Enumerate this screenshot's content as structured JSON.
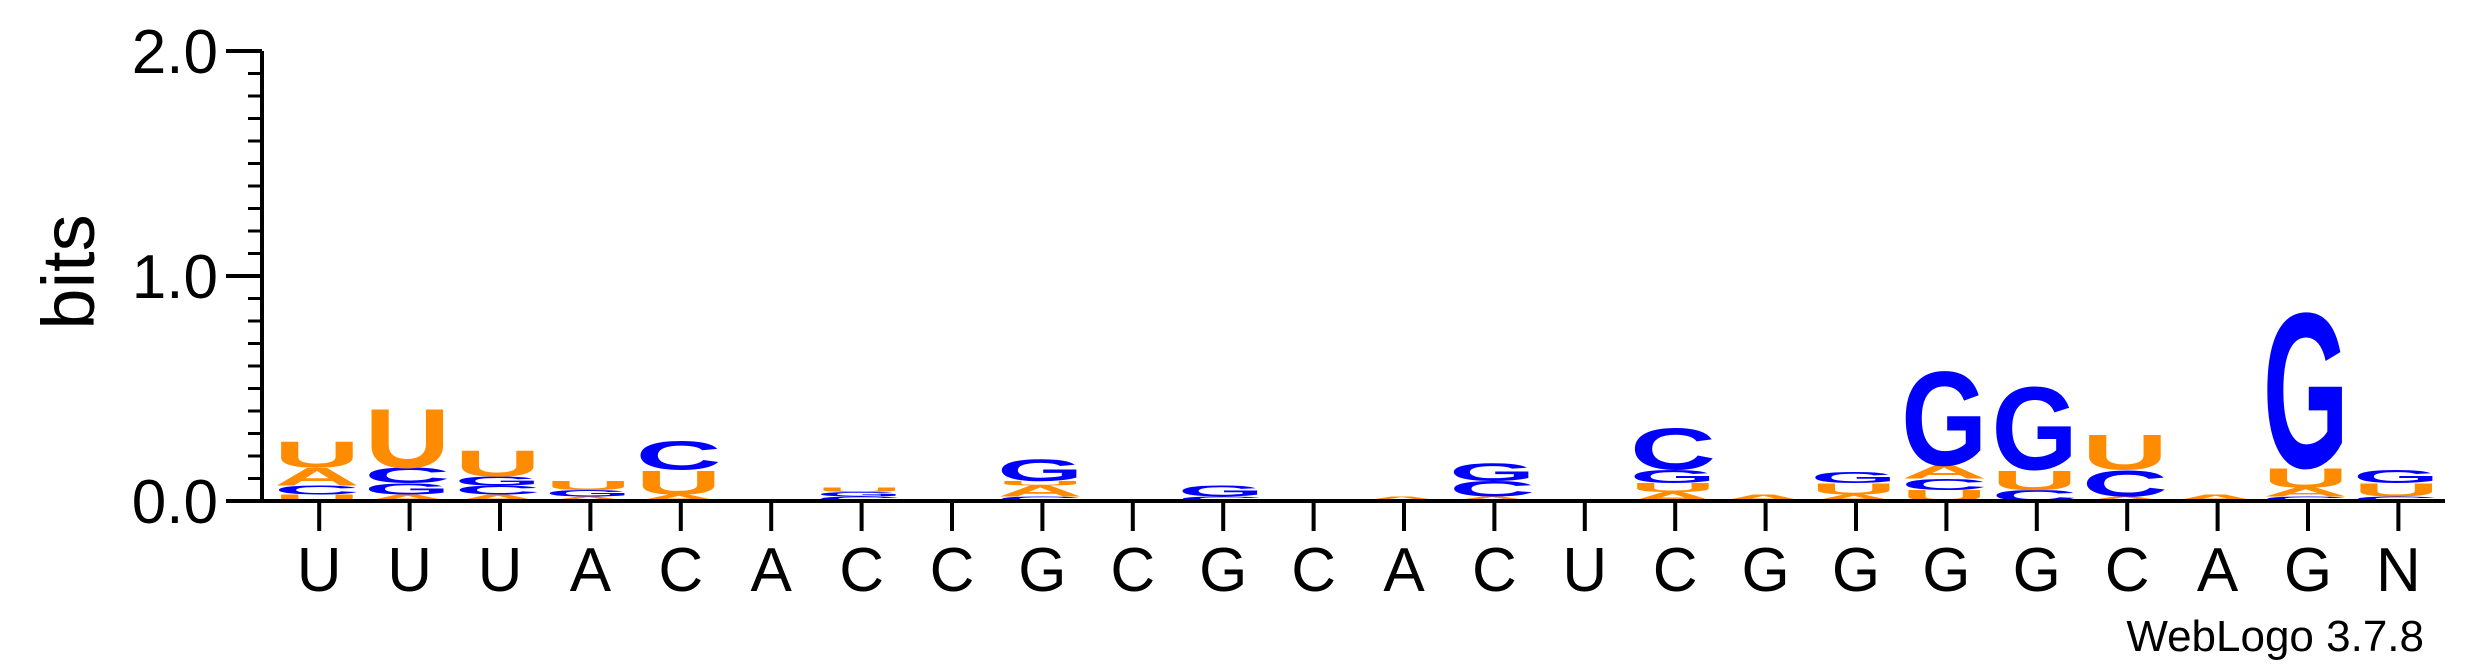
{
  "chart_data": {
    "type": "sequence-logo",
    "ylabel": "bits",
    "ylim": [
      0,
      2.0
    ],
    "yticks": [
      "0.0",
      "1.0",
      "2.0"
    ],
    "alphabet_colors": {
      "U": "#ff8c00",
      "A": "#ff8c00",
      "G": "#0000ff",
      "C": "#0000ff"
    },
    "positions": [
      {
        "label": "U",
        "stack": [
          {
            "l": "U",
            "h": 0.03
          },
          {
            "l": "C",
            "h": 0.04
          },
          {
            "l": "A",
            "h": 0.08
          },
          {
            "l": "U",
            "h": 0.12
          }
        ]
      },
      {
        "label": "U",
        "stack": [
          {
            "l": "A",
            "h": 0.03
          },
          {
            "l": "G",
            "h": 0.05
          },
          {
            "l": "C",
            "h": 0.07
          },
          {
            "l": "U",
            "h": 0.27
          }
        ]
      },
      {
        "label": "U",
        "stack": [
          {
            "l": "A",
            "h": 0.03
          },
          {
            "l": "C",
            "h": 0.04
          },
          {
            "l": "G",
            "h": 0.04
          },
          {
            "l": "U",
            "h": 0.12
          }
        ]
      },
      {
        "label": "A",
        "stack": [
          {
            "l": "A",
            "h": 0.02
          },
          {
            "l": "G",
            "h": 0.03
          },
          {
            "l": "U",
            "h": 0.04
          }
        ]
      },
      {
        "label": "C",
        "stack": [
          {
            "l": "A",
            "h": 0.03
          },
          {
            "l": "U",
            "h": 0.11
          },
          {
            "l": "C",
            "h": 0.13
          }
        ]
      },
      {
        "label": "A",
        "stack": []
      },
      {
        "label": "C",
        "stack": [
          {
            "l": "C",
            "h": 0.02
          },
          {
            "l": "G",
            "h": 0.02
          },
          {
            "l": "U",
            "h": 0.02
          }
        ]
      },
      {
        "label": "C",
        "stack": [
          {
            "l": "U",
            "h": 0.01
          }
        ]
      },
      {
        "label": "G",
        "stack": [
          {
            "l": "C",
            "h": 0.02
          },
          {
            "l": "A",
            "h": 0.05
          },
          {
            "l": "U",
            "h": 0.02
          },
          {
            "l": "G",
            "h": 0.1
          }
        ]
      },
      {
        "label": "C",
        "stack": []
      },
      {
        "label": "G",
        "stack": [
          {
            "l": "C",
            "h": 0.02
          },
          {
            "l": "G",
            "h": 0.05
          }
        ]
      },
      {
        "label": "C",
        "stack": []
      },
      {
        "label": "A",
        "stack": [
          {
            "l": "A",
            "h": 0.02
          }
        ]
      },
      {
        "label": "C",
        "stack": [
          {
            "l": "A",
            "h": 0.02
          },
          {
            "l": "C",
            "h": 0.07
          },
          {
            "l": "G",
            "h": 0.08
          }
        ]
      },
      {
        "label": "U",
        "stack": []
      },
      {
        "label": "C",
        "stack": [
          {
            "l": "A",
            "h": 0.04
          },
          {
            "l": "U",
            "h": 0.04
          },
          {
            "l": "G",
            "h": 0.06
          },
          {
            "l": "C",
            "h": 0.19
          }
        ]
      },
      {
        "label": "G",
        "stack": [
          {
            "l": "A",
            "h": 0.03
          }
        ]
      },
      {
        "label": "G",
        "stack": [
          {
            "l": "A",
            "h": 0.03
          },
          {
            "l": "U",
            "h": 0.05
          },
          {
            "l": "G",
            "h": 0.05
          }
        ]
      },
      {
        "label": "G",
        "stack": [
          {
            "l": "U",
            "h": 0.05
          },
          {
            "l": "C",
            "h": 0.05
          },
          {
            "l": "A",
            "h": 0.06
          },
          {
            "l": "G",
            "h": 0.43
          }
        ]
      },
      {
        "label": "G",
        "stack": [
          {
            "l": "C",
            "h": 0.05
          },
          {
            "l": "U",
            "h": 0.09
          },
          {
            "l": "G",
            "h": 0.38
          }
        ]
      },
      {
        "label": "C",
        "stack": [
          {
            "l": "A",
            "h": 0.02
          },
          {
            "l": "C",
            "h": 0.12
          },
          {
            "l": "U",
            "h": 0.16
          }
        ]
      },
      {
        "label": "A",
        "stack": [
          {
            "l": "A",
            "h": 0.03
          }
        ]
      },
      {
        "label": "G",
        "stack": [
          {
            "l": "C",
            "h": 0.02
          },
          {
            "l": "A",
            "h": 0.04
          },
          {
            "l": "U",
            "h": 0.09
          },
          {
            "l": "G",
            "h": 0.71
          }
        ]
      },
      {
        "label": "N",
        "stack": [
          {
            "l": "C",
            "h": 0.02
          },
          {
            "l": "U",
            "h": 0.06
          },
          {
            "l": "G",
            "h": 0.06
          }
        ]
      }
    ]
  },
  "credit": "WebLogo 3.7.8"
}
